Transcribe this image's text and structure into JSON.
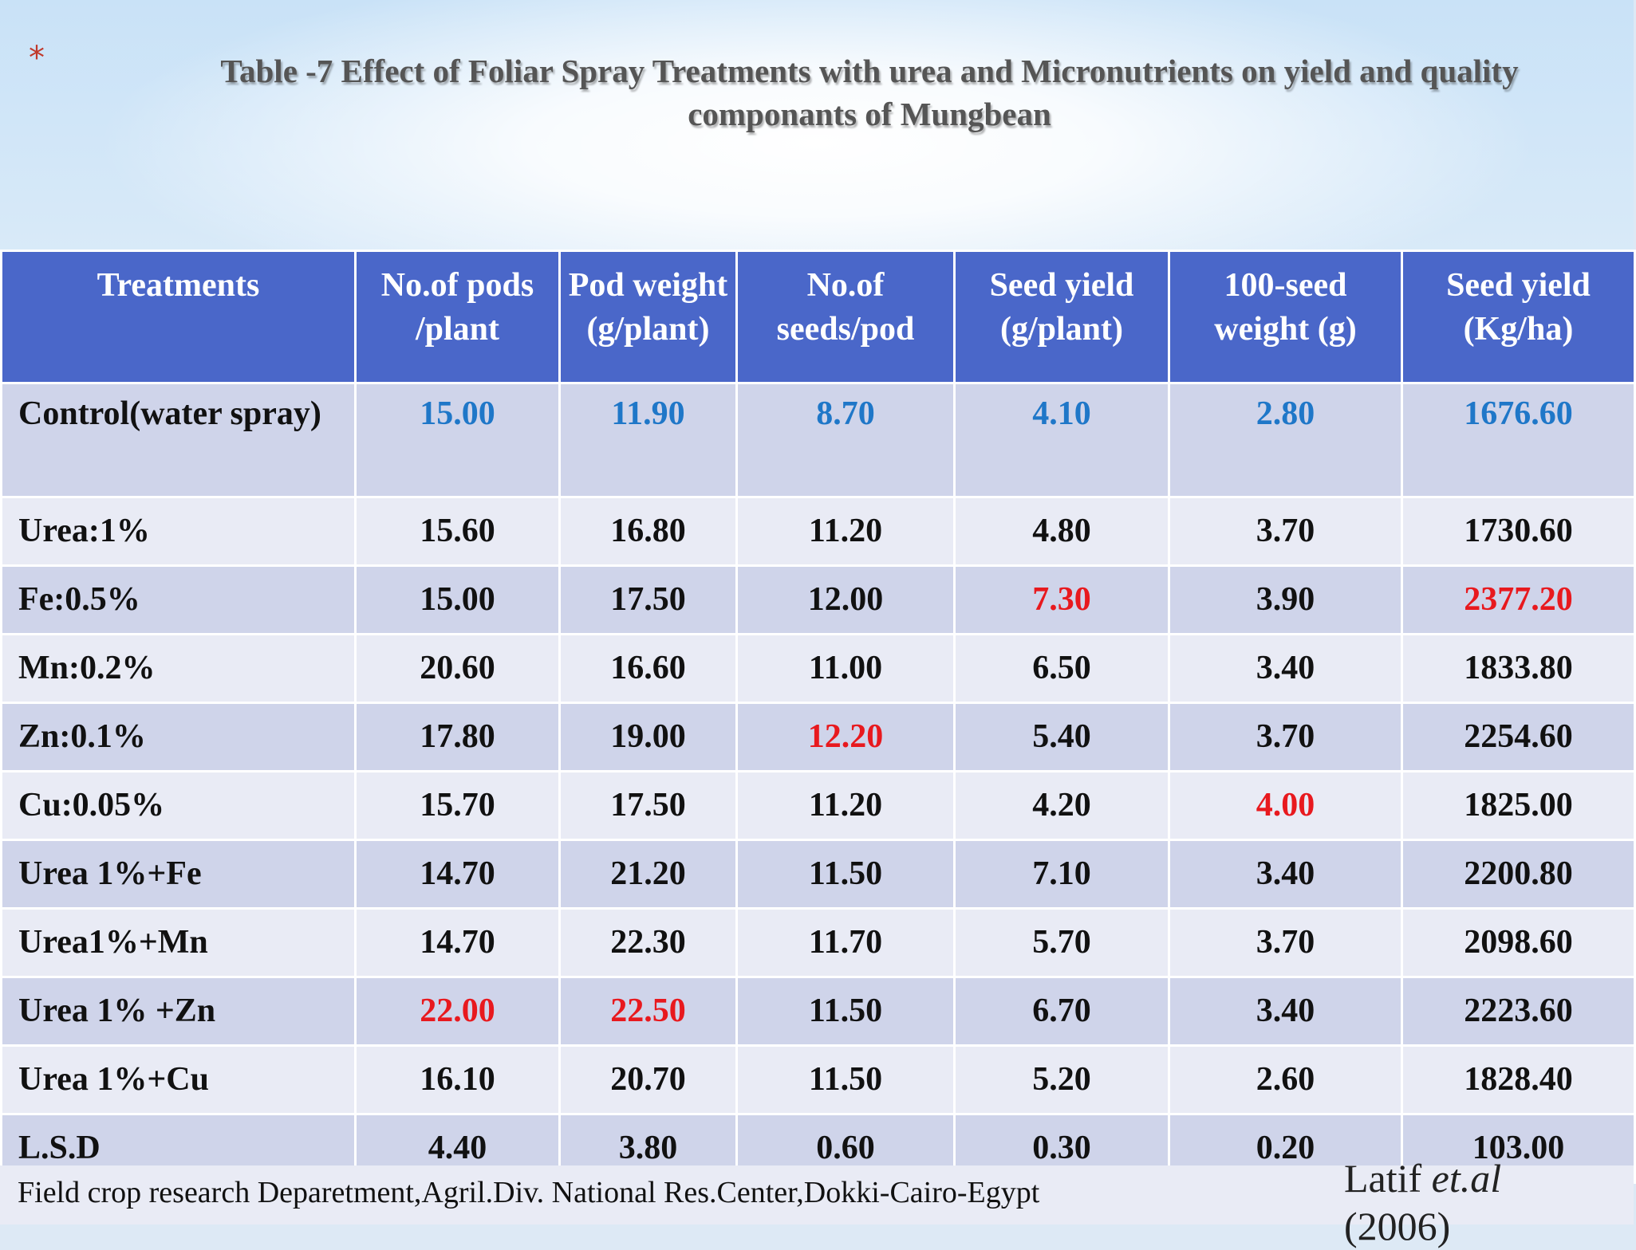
{
  "slide": {
    "bullet": "*",
    "title": "Table -7  Effect of Foliar Spray Treatments with urea and Micronutrients on yield and quality componants of Mungbean"
  },
  "table": {
    "headers": [
      "Treatments",
      "No.of pods /plant",
      "Pod weight (g/plant)",
      "No.of seeds/pod",
      "Seed yield (g/plant)",
      "100-seed weight (g)",
      "Seed yield (Kg/ha)"
    ],
    "rows": [
      {
        "treatment": "Control(water spray)",
        "values": [
          "15.00",
          "11.90",
          "8.70",
          "4.10",
          "2.80",
          "1676.60"
        ]
      },
      {
        "treatment": "Urea:1%",
        "values": [
          "15.60",
          "16.80",
          "11.20",
          "4.80",
          "3.70",
          "1730.60"
        ]
      },
      {
        "treatment": "Fe:0.5%",
        "values": [
          "15.00",
          "17.50",
          "12.00",
          "7.30",
          "3.90",
          "2377.20"
        ]
      },
      {
        "treatment": "Mn:0.2%",
        "values": [
          "20.60",
          "16.60",
          "11.00",
          "6.50",
          "3.40",
          "1833.80"
        ]
      },
      {
        "treatment": "Zn:0.1%",
        "values": [
          "17.80",
          "19.00",
          "12.20",
          "5.40",
          "3.70",
          "2254.60"
        ]
      },
      {
        "treatment": "Cu:0.05%",
        "values": [
          "15.70",
          "17.50",
          "11.20",
          "4.20",
          "4.00",
          "1825.00"
        ]
      },
      {
        "treatment": "Urea 1%+Fe",
        "values": [
          "14.70",
          "21.20",
          "11.50",
          "7.10",
          "3.40",
          "2200.80"
        ]
      },
      {
        "treatment": "Urea1%+Mn",
        "values": [
          "14.70",
          "22.30",
          "11.70",
          "5.70",
          "3.70",
          "2098.60"
        ]
      },
      {
        "treatment": "Urea 1% +Zn",
        "values": [
          "22.00",
          "22.50",
          "11.50",
          "6.70",
          "3.40",
          "2223.60"
        ]
      },
      {
        "treatment": "Urea 1%+Cu",
        "values": [
          "16.10",
          "20.70",
          "11.50",
          "5.20",
          "2.60",
          "1828.40"
        ]
      },
      {
        "treatment": "L.S.D",
        "values": [
          "4.40",
          "3.80",
          "0.60",
          "0.30",
          "0.20",
          "103.00"
        ]
      }
    ]
  },
  "footer": {
    "source": "Field crop research Deparetment,Agril.Div. National Res.Center,Dokki-Cairo-Egypt",
    "citation_author": "Latif",
    "citation_etal": "et.al",
    "citation_year": "(2006)"
  },
  "colors": {
    "header_bg": "#4a67c9",
    "row_dark": "#cfd4ea",
    "row_light": "#e9ebf5",
    "control_values": "#1f77c8",
    "highlight_max": "#e8191e",
    "title_star": "#c0392b"
  }
}
